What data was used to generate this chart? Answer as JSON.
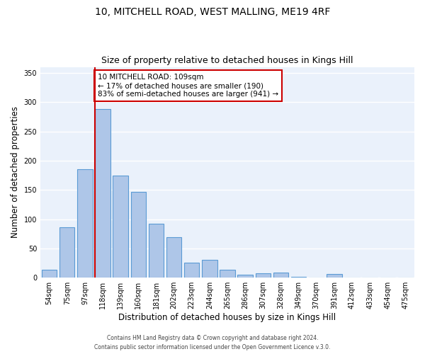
{
  "title1": "10, MITCHELL ROAD, WEST MALLING, ME19 4RF",
  "title2": "Size of property relative to detached houses in Kings Hill",
  "xlabel": "Distribution of detached houses by size in Kings Hill",
  "ylabel": "Number of detached properties",
  "bar_labels": [
    "54sqm",
    "75sqm",
    "97sqm",
    "118sqm",
    "139sqm",
    "160sqm",
    "181sqm",
    "202sqm",
    "223sqm",
    "244sqm",
    "265sqm",
    "286sqm",
    "307sqm",
    "328sqm",
    "349sqm",
    "370sqm",
    "391sqm",
    "412sqm",
    "433sqm",
    "454sqm",
    "475sqm"
  ],
  "bar_values": [
    13,
    86,
    185,
    288,
    175,
    147,
    92,
    69,
    26,
    30,
    14,
    5,
    7,
    9,
    2,
    0,
    6,
    0,
    0,
    0,
    0
  ],
  "bar_color": "#aec6e8",
  "bar_edge_color": "#5b9bd5",
  "bg_color": "#eaf1fb",
  "grid_color": "#ffffff",
  "vline_color": "#cc0000",
  "annotation_title": "10 MITCHELL ROAD: 109sqm",
  "annotation_line1": "← 17% of detached houses are smaller (190)",
  "annotation_line2": "83% of semi-detached houses are larger (941) →",
  "annotation_box_color": "#cc0000",
  "ylim": [
    0,
    360
  ],
  "yticks": [
    0,
    50,
    100,
    150,
    200,
    250,
    300,
    350
  ],
  "footer1": "Contains HM Land Registry data © Crown copyright and database right 2024.",
  "footer2": "Contains public sector information licensed under the Open Government Licence v.3.0."
}
